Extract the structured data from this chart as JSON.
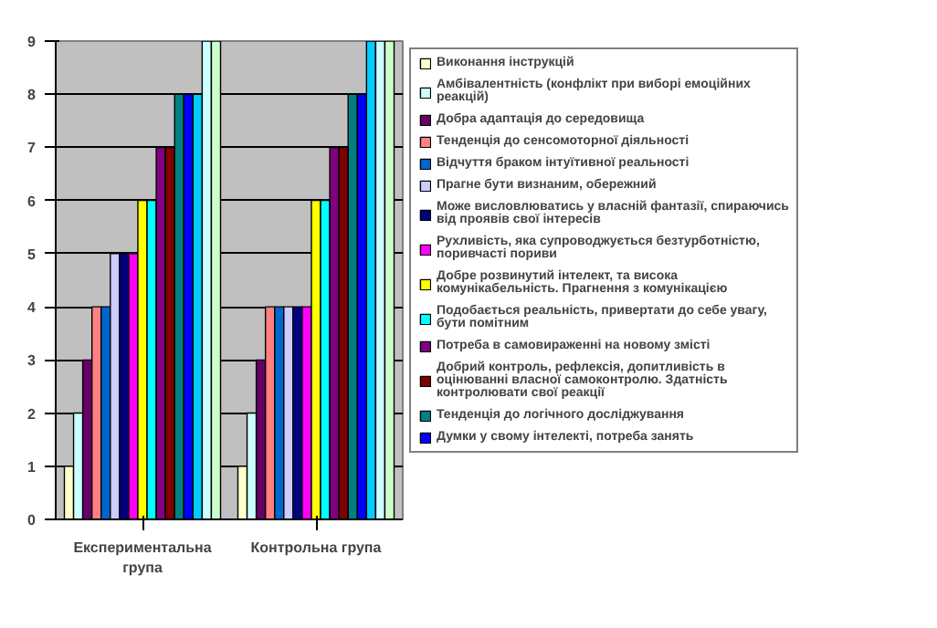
{
  "chart_data": {
    "type": "bar",
    "categories": [
      "Експериментальна група",
      "Контрольна група"
    ],
    "series": [
      {
        "name": "Виконання інструкцій",
        "color": "#ffffcc",
        "values": [
          1,
          1
        ]
      },
      {
        "name": "Амбівалентність (конфлікт при виборі емоційних реакцій)",
        "color": "#ccffff",
        "values": [
          2,
          2
        ]
      },
      {
        "name": "Добра адаптація до середовища",
        "color": "#660066",
        "values": [
          3,
          3
        ]
      },
      {
        "name": "Тенденція до сенсомоторної діяльності",
        "color": "#ff8080",
        "values": [
          4,
          4
        ]
      },
      {
        "name": "Відчуття браком інтуїтивної реальності",
        "color": "#0066cc",
        "values": [
          4,
          4
        ]
      },
      {
        "name": "Прагне бути визнаним, обережний",
        "color": "#ccccff",
        "values": [
          5,
          4
        ]
      },
      {
        "name": "Може висловлюватись у власній фантазії, спираючись від проявів свої інтересів",
        "color": "#000080",
        "values": [
          5,
          4
        ]
      },
      {
        "name": "Рухливість, яка супроводжується безтурботністю, поривчасті пориви",
        "color": "#ff00ff",
        "values": [
          5,
          4
        ]
      },
      {
        "name": "Добре розвинутий інтелект, та висока комунікабельність. Прагнення з комунікацією",
        "color": "#ffff00",
        "values": [
          6,
          6
        ]
      },
      {
        "name": "Подобається реальність, привертати до себе увагу, бути помітним",
        "color": "#00ffff",
        "values": [
          6,
          6
        ]
      },
      {
        "name": "Потреба в самовираженні на новому змісті",
        "color": "#800080",
        "values": [
          7,
          7
        ]
      },
      {
        "name": "Добрий контроль, рефлексія, допитливість в оцінюванні власної самоконтролю. Здатність контролювати свої реакції",
        "color": "#800000",
        "values": [
          7,
          7
        ]
      },
      {
        "name": "Тенденція до логічного досліджування",
        "color": "#008080",
        "values": [
          8,
          8
        ]
      },
      {
        "name": "Думки у свому інтелекті, потреба занять",
        "color": "#0000ff",
        "values": [
          8,
          8
        ]
      },
      {
        "color": "#00ccff",
        "values": [
          8,
          9
        ]
      },
      {
        "color": "#ccffff",
        "values": [
          9,
          9
        ]
      },
      {
        "color": "#ccffcc",
        "values": [
          9,
          9
        ]
      }
    ],
    "ylim": [
      0,
      9
    ],
    "yticks": [
      0,
      1,
      2,
      3,
      4,
      5,
      6,
      7,
      8,
      9
    ],
    "grid": "y",
    "legend": "right"
  }
}
